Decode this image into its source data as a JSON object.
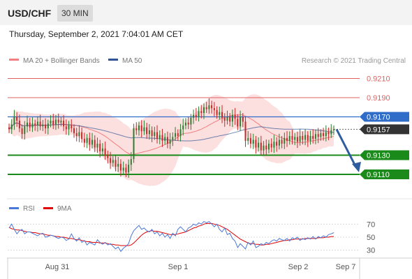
{
  "header": {
    "symbol": "USD/CHF",
    "timeframe": "30 MIN",
    "date": "Thursday, September 2, 2021 7:04:01 AM CET"
  },
  "legend": {
    "ma20": "MA 20 + Bollinger Bands",
    "ma50": "MA 50",
    "credit": "Research © 2021 Trading Central",
    "ma20_color": "#f28080",
    "ma50_color": "#2f5597"
  },
  "colors": {
    "up": "#2e7d32",
    "down": "#c62828",
    "support": "#1a8a1a",
    "resistance": "#e06060",
    "pivot": "#2f6dc9",
    "current": "#333333",
    "arrow": "#2f5c9e",
    "rsi": "#4a78d8",
    "rsi_ma": "#e00000"
  },
  "chart_data": [
    {
      "type": "candlestick",
      "ylim": [
        0.9094,
        0.9222
      ],
      "x_labels": [
        "Aug 31",
        "Sep 1",
        "Sep 2",
        "Sep 7"
      ],
      "levels": [
        {
          "value": 0.921,
          "label": "0.9210",
          "kind": "resistance"
        },
        {
          "value": 0.919,
          "label": "0.9190",
          "kind": "resistance"
        },
        {
          "value": 0.917,
          "label": "0.9170",
          "kind": "pivot"
        },
        {
          "value": 0.9157,
          "label": "0.9157",
          "kind": "current"
        },
        {
          "value": 0.913,
          "label": "0.9130",
          "kind": "support"
        },
        {
          "value": 0.911,
          "label": "0.9110",
          "kind": "support"
        }
      ],
      "forecast": {
        "from": 0.9157,
        "to": 0.911
      },
      "close": [
        0.9157,
        0.9162,
        0.917,
        0.9166,
        0.9158,
        0.9152,
        0.916,
        0.9164,
        0.9159,
        0.9163,
        0.9161,
        0.9165,
        0.916,
        0.9162,
        0.9158,
        0.9163,
        0.9166,
        0.9162,
        0.9167,
        0.9164,
        0.9166,
        0.916,
        0.9157,
        0.9161,
        0.9158,
        0.9153,
        0.915,
        0.9154,
        0.9147,
        0.9143,
        0.9148,
        0.9141,
        0.9146,
        0.9138,
        0.9142,
        0.9134,
        0.9137,
        0.913,
        0.9127,
        0.9122,
        0.9125,
        0.9118,
        0.9121,
        0.9114,
        0.9117,
        0.9112,
        0.912,
        0.9126,
        0.9158,
        0.9156,
        0.9161,
        0.9155,
        0.9159,
        0.9152,
        0.9156,
        0.915,
        0.9154,
        0.9147,
        0.9151,
        0.9145,
        0.9149,
        0.9142,
        0.9146,
        0.9149,
        0.9153,
        0.915,
        0.9157,
        0.9161,
        0.9164,
        0.9162,
        0.9169,
        0.9172,
        0.917,
        0.9176,
        0.9174,
        0.918,
        0.9178,
        0.9182,
        0.9179,
        0.9177,
        0.9172,
        0.9175,
        0.9169,
        0.9166,
        0.917,
        0.9165,
        0.9172,
        0.9168,
        0.916,
        0.917,
        0.9165,
        0.9145,
        0.9148,
        0.9142,
        0.9146,
        0.9138,
        0.9143,
        0.9135,
        0.914,
        0.9136,
        0.9142,
        0.9138,
        0.9144,
        0.914,
        0.9146,
        0.9142,
        0.9148,
        0.9145,
        0.915,
        0.9146,
        0.9149,
        0.9144,
        0.915,
        0.9146,
        0.9151,
        0.9145,
        0.915,
        0.9147,
        0.9152,
        0.9149,
        0.9153,
        0.915,
        0.9154,
        0.9152,
        0.9156,
        0.9157
      ]
    },
    {
      "type": "line",
      "series": [
        {
          "name": "RSI"
        },
        {
          "name": "9MA"
        }
      ],
      "ylim": [
        20,
        80
      ],
      "y_ticks": [
        70,
        50,
        30
      ],
      "rsi": [
        64,
        70,
        62,
        55,
        60,
        62,
        55,
        58,
        58,
        56,
        54,
        52,
        55,
        56,
        50,
        51,
        53,
        52,
        50,
        48,
        50,
        49,
        45,
        47,
        55,
        48,
        44,
        49,
        42,
        45,
        38,
        42,
        40,
        38,
        46,
        42,
        39,
        42,
        38,
        40,
        36,
        32,
        35,
        28,
        33,
        36,
        40,
        52,
        60,
        64,
        68,
        62,
        64,
        60,
        58,
        62,
        55,
        58,
        52,
        56,
        50,
        54,
        48,
        56,
        52,
        62,
        66,
        62,
        58,
        64,
        66,
        70,
        68,
        72,
        70,
        74,
        72,
        74,
        70,
        66,
        70,
        62,
        58,
        64,
        54,
        56,
        48,
        44,
        34,
        40,
        36,
        32,
        42,
        38,
        44,
        34,
        36,
        40,
        38,
        42,
        40,
        44,
        46,
        44,
        48,
        46,
        45,
        48,
        44,
        49,
        47,
        50,
        45,
        48,
        46,
        49,
        47,
        51,
        47,
        51,
        49,
        52,
        50,
        54,
        55,
        57
      ],
      "ma": [
        65,
        63,
        62,
        61,
        61,
        60,
        59,
        58,
        58,
        57,
        57,
        56,
        55,
        55,
        54,
        53,
        53,
        52,
        51,
        51,
        50,
        50,
        49,
        48,
        48,
        47,
        46,
        46,
        45,
        44,
        43,
        43,
        42,
        42,
        42,
        41,
        41,
        41,
        40,
        39,
        39,
        38,
        38,
        37,
        37,
        37,
        37,
        38,
        41,
        45,
        49,
        53,
        56,
        58,
        59,
        60,
        59,
        59,
        58,
        57,
        56,
        55,
        54,
        54,
        54,
        55,
        56,
        57,
        58,
        60,
        62,
        64,
        65,
        67,
        68,
        70,
        71,
        71,
        71,
        70,
        69,
        68,
        66,
        64,
        62,
        59,
        56,
        53,
        50,
        47,
        45,
        43,
        41,
        40,
        40,
        39,
        39,
        38,
        38,
        39,
        39,
        40,
        41,
        42,
        43,
        44,
        45,
        45,
        46,
        46,
        47,
        47,
        47,
        47,
        48,
        48,
        48,
        48,
        48,
        49,
        49,
        49,
        50,
        50,
        51,
        51
      ]
    }
  ]
}
